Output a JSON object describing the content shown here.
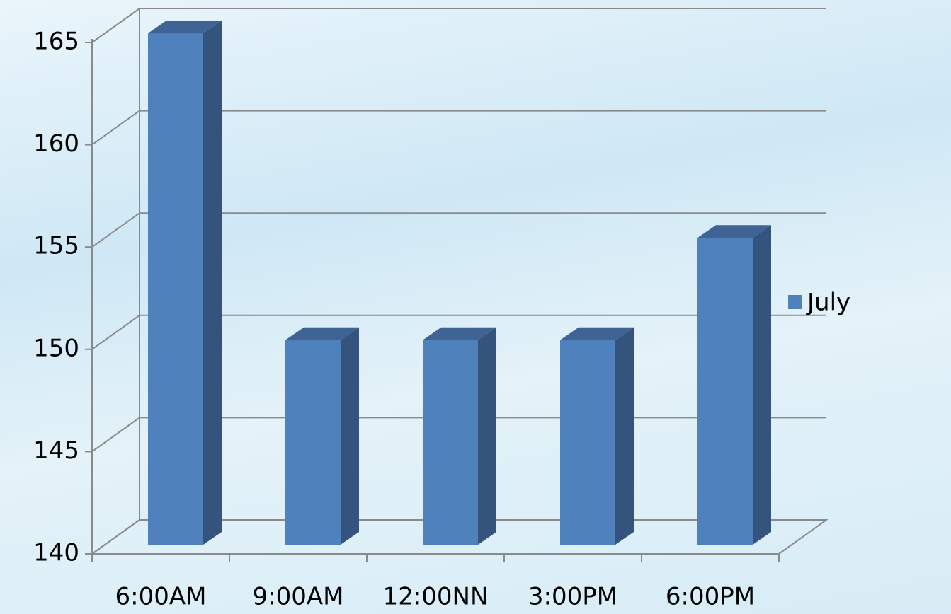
{
  "chart_data": {
    "type": "bar3d",
    "categories": [
      "6:00AM",
      "9:00AM",
      "12:00NN",
      "3:00PM",
      "6:00PM"
    ],
    "series": [
      {
        "name": "July",
        "color": "#4f81bd",
        "values": [
          165,
          150,
          150,
          150,
          155
        ]
      }
    ],
    "ylim": [
      140,
      165
    ],
    "yticks": [
      140,
      145,
      150,
      155,
      160,
      165
    ],
    "grid": true,
    "legend": "right"
  }
}
